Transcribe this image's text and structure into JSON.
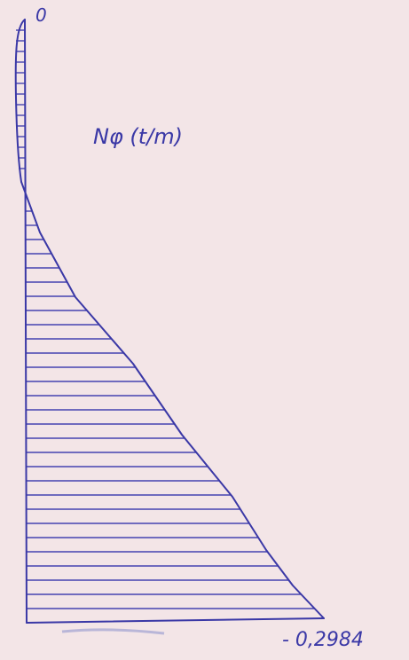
{
  "labels": {
    "top_value": "0",
    "title": "Nφ (t/m)",
    "bottom_value": "- 0,2984"
  }
}
